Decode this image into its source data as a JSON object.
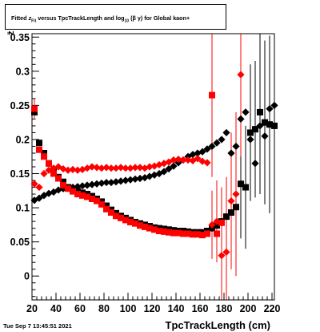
{
  "title": {
    "prefix": "Fitted",
    "z_label": "z",
    "z_sub": "Fit",
    "mid": "versus TpcTrackLength and log",
    "log_sub": "10",
    "bg_symbol": "(β  γ)",
    "suffix": "for Global kaon+"
  },
  "footer": {
    "datetime": "Tue Sep  7 13:45:51 2021"
  },
  "colors": {
    "black_series": "#000000",
    "red_series": "#ff0000",
    "frame": "#000000",
    "background": "#ffffff"
  },
  "chart_data": {
    "type": "scatter",
    "xlabel": "TpcTrackLength (cm)",
    "ylabel": "z̄",
    "xlim": [
      20,
      222
    ],
    "ylim": [
      -0.035,
      0.355
    ],
    "x_ticks": [
      20,
      40,
      60,
      80,
      100,
      120,
      140,
      160,
      180,
      200,
      220
    ],
    "y_ticks": [
      0,
      0.05,
      0.1,
      0.15,
      0.2,
      0.25,
      0.3,
      0.35
    ],
    "y_tick_labels": [
      "0",
      "0.05",
      "0.1",
      "0.15",
      "0.2",
      "0.25",
      "0.3",
      "0.35"
    ],
    "series": [
      {
        "marker": "diamond",
        "color": "#000000",
        "points": [
          [
            22,
            0.111
          ],
          [
            26,
            0.114
          ],
          [
            30,
            0.118
          ],
          [
            34,
            0.121
          ],
          [
            38,
            0.123
          ],
          [
            42,
            0.126
          ],
          [
            46,
            0.128
          ],
          [
            50,
            0.129
          ],
          [
            54,
            0.13
          ],
          [
            58,
            0.131
          ],
          [
            62,
            0.132
          ],
          [
            66,
            0.133
          ],
          [
            70,
            0.134
          ],
          [
            74,
            0.135
          ],
          [
            78,
            0.136
          ],
          [
            82,
            0.137
          ],
          [
            86,
            0.137
          ],
          [
            90,
            0.138
          ],
          [
            94,
            0.139
          ],
          [
            98,
            0.14
          ],
          [
            102,
            0.141
          ],
          [
            106,
            0.142
          ],
          [
            110,
            0.143
          ],
          [
            114,
            0.144
          ],
          [
            118,
            0.146
          ],
          [
            122,
            0.148
          ],
          [
            126,
            0.15
          ],
          [
            130,
            0.153
          ],
          [
            134,
            0.157
          ],
          [
            138,
            0.161
          ],
          [
            142,
            0.166
          ],
          [
            146,
            0.17
          ],
          [
            150,
            0.175
          ],
          [
            154,
            0.178
          ],
          [
            158,
            0.18
          ],
          [
            162,
            0.182
          ],
          [
            166,
            0.186
          ],
          [
            170,
            0.19
          ],
          [
            174,
            0.195
          ],
          [
            178,
            0.2
          ],
          [
            182,
            0.21
          ],
          [
            186,
            0.18
          ],
          [
            190,
            0.19
          ],
          [
            194,
            0.23
          ],
          [
            198,
            0.24
          ],
          [
            202,
            0.2
          ],
          [
            206,
            0.165
          ],
          [
            210,
            0.22
          ],
          [
            214,
            0.205
          ],
          [
            218,
            0.245
          ],
          [
            222,
            0.25
          ]
        ],
        "errors": [
          [
            202,
            0.06
          ],
          [
            206,
            0.05
          ],
          [
            210,
            0.09
          ],
          [
            214,
            0.06
          ],
          [
            218,
            0.06
          ],
          [
            222,
            0.06
          ]
        ]
      },
      {
        "marker": "square",
        "color": "#000000",
        "points": [
          [
            22,
            0.24
          ],
          [
            26,
            0.195
          ],
          [
            30,
            0.18
          ],
          [
            34,
            0.165
          ],
          [
            38,
            0.155
          ],
          [
            42,
            0.145
          ],
          [
            46,
            0.138
          ],
          [
            50,
            0.13
          ],
          [
            54,
            0.126
          ],
          [
            58,
            0.124
          ],
          [
            62,
            0.122
          ],
          [
            66,
            0.12
          ],
          [
            70,
            0.117
          ],
          [
            74,
            0.113
          ],
          [
            78,
            0.109
          ],
          [
            82,
            0.103
          ],
          [
            86,
            0.097
          ],
          [
            90,
            0.092
          ],
          [
            94,
            0.088
          ],
          [
            98,
            0.085
          ],
          [
            102,
            0.082
          ],
          [
            106,
            0.079
          ],
          [
            110,
            0.077
          ],
          [
            114,
            0.075
          ],
          [
            118,
            0.073
          ],
          [
            122,
            0.071
          ],
          [
            126,
            0.07
          ],
          [
            130,
            0.069
          ],
          [
            134,
            0.068
          ],
          [
            138,
            0.067
          ],
          [
            142,
            0.066
          ],
          [
            146,
            0.066
          ],
          [
            150,
            0.065
          ],
          [
            154,
            0.064
          ],
          [
            158,
            0.064
          ],
          [
            162,
            0.064
          ],
          [
            166,
            0.066
          ],
          [
            170,
            0.07
          ],
          [
            174,
            0.074
          ],
          [
            178,
            0.08
          ],
          [
            182,
            0.087
          ],
          [
            186,
            0.093
          ],
          [
            190,
            0.101
          ],
          [
            194,
            0.135
          ],
          [
            198,
            0.13
          ],
          [
            202,
            0.21
          ],
          [
            206,
            0.215
          ],
          [
            210,
            0.24
          ],
          [
            214,
            0.225
          ],
          [
            218,
            0.222
          ],
          [
            222,
            0.22
          ]
        ],
        "errors": [
          [
            182,
            0.04
          ],
          [
            186,
            0.05
          ],
          [
            190,
            0.07
          ],
          [
            194,
            0.08
          ],
          [
            198,
            0.09
          ],
          [
            202,
            0.1
          ],
          [
            206,
            0.1
          ],
          [
            210,
            0.12
          ],
          [
            214,
            0.12
          ],
          [
            218,
            0.13
          ],
          [
            222,
            0.13
          ]
        ]
      },
      {
        "marker": "diamond",
        "color": "#ff0000",
        "points": [
          [
            22,
            0.135
          ],
          [
            26,
            0.13
          ],
          [
            30,
            0.15
          ],
          [
            34,
            0.155
          ],
          [
            38,
            0.158
          ],
          [
            42,
            0.16
          ],
          [
            46,
            0.157
          ],
          [
            50,
            0.155
          ],
          [
            54,
            0.156
          ],
          [
            58,
            0.155
          ],
          [
            62,
            0.156
          ],
          [
            66,
            0.158
          ],
          [
            70,
            0.16
          ],
          [
            74,
            0.159
          ],
          [
            78,
            0.158
          ],
          [
            82,
            0.159
          ],
          [
            86,
            0.158
          ],
          [
            90,
            0.158
          ],
          [
            94,
            0.159
          ],
          [
            98,
            0.158
          ],
          [
            102,
            0.158
          ],
          [
            106,
            0.159
          ],
          [
            110,
            0.159
          ],
          [
            114,
            0.158
          ],
          [
            118,
            0.16
          ],
          [
            122,
            0.161
          ],
          [
            126,
            0.163
          ],
          [
            130,
            0.165
          ],
          [
            134,
            0.167
          ],
          [
            138,
            0.17
          ],
          [
            142,
            0.171
          ],
          [
            146,
            0.17
          ],
          [
            150,
            0.17
          ],
          [
            154,
            0.169
          ],
          [
            158,
            0.172
          ],
          [
            162,
            0.168
          ],
          [
            166,
            0.166
          ],
          [
            170,
            0.075
          ],
          [
            174,
            0.08
          ],
          [
            178,
            0.03
          ],
          [
            182,
            0.035
          ],
          [
            186,
            0.11
          ],
          [
            190,
            0.12
          ],
          [
            194,
            0.295
          ]
        ],
        "errors": [
          [
            170,
            0.05
          ],
          [
            174,
            0.06
          ],
          [
            178,
            0.1
          ],
          [
            182,
            0.11
          ],
          [
            186,
            0.1
          ],
          [
            190,
            0.12
          ],
          [
            194,
            0.12
          ]
        ]
      },
      {
        "marker": "square",
        "color": "#ff0000",
        "points": [
          [
            22,
            0.245
          ],
          [
            26,
            0.185
          ],
          [
            30,
            0.175
          ],
          [
            34,
            0.165
          ],
          [
            38,
            0.15
          ],
          [
            42,
            0.143
          ],
          [
            46,
            0.133
          ],
          [
            50,
            0.128
          ],
          [
            54,
            0.124
          ],
          [
            58,
            0.12
          ],
          [
            62,
            0.118
          ],
          [
            66,
            0.116
          ],
          [
            70,
            0.113
          ],
          [
            74,
            0.11
          ],
          [
            78,
            0.105
          ],
          [
            82,
            0.098
          ],
          [
            86,
            0.093
          ],
          [
            90,
            0.088
          ],
          [
            94,
            0.085
          ],
          [
            98,
            0.082
          ],
          [
            102,
            0.079
          ],
          [
            106,
            0.077
          ],
          [
            110,
            0.074
          ],
          [
            114,
            0.072
          ],
          [
            118,
            0.07
          ],
          [
            122,
            0.068
          ],
          [
            126,
            0.066
          ],
          [
            130,
            0.065
          ],
          [
            134,
            0.064
          ],
          [
            138,
            0.063
          ],
          [
            142,
            0.063
          ],
          [
            146,
            0.062
          ],
          [
            150,
            0.062
          ],
          [
            154,
            0.061
          ],
          [
            158,
            0.061
          ],
          [
            162,
            0.06
          ],
          [
            166,
            0.062
          ],
          [
            170,
            0.265
          ],
          [
            174,
            0.062
          ],
          [
            178,
            0.078
          ]
        ],
        "errors": [
          [
            22,
            0.015
          ],
          [
            170,
            0.12
          ]
        ]
      }
    ],
    "title": "Fitted z_Fit versus TpcTrackLength and log_10(β γ) for Global kaon+",
    "grid": false
  }
}
